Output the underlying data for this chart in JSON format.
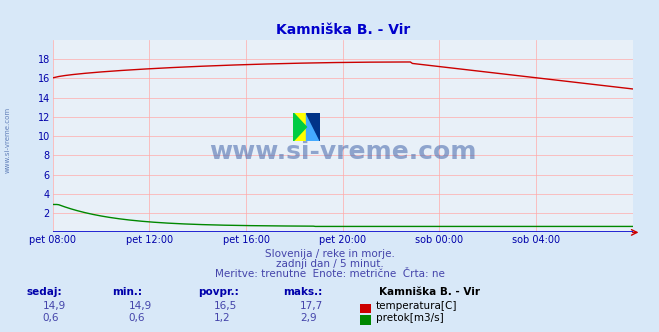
{
  "title": "Kamniška B. - Vir",
  "bg_color": "#d8e8f8",
  "plot_bg_color": "#e8f0f8",
  "grid_color": "#ffaaaa",
  "title_color": "#0000cc",
  "axis_color": "#0000aa",
  "text_color": "#4444aa",
  "x_labels": [
    "pet 08:00",
    "pet 12:00",
    "pet 16:00",
    "pet 20:00",
    "sob 00:00",
    "sob 04:00"
  ],
  "x_ticks_norm": [
    0.0,
    0.1667,
    0.3333,
    0.5,
    0.6667,
    0.8333
  ],
  "ylim": [
    0,
    20
  ],
  "temp_color": "#cc0000",
  "flow_color": "#008800",
  "watermark_text": "www.si-vreme.com",
  "watermark_color": "#4466aa",
  "subtitle1": "Slovenija / reke in morje.",
  "subtitle2": "zadnji dan / 5 minut.",
  "subtitle3": "Meritve: trenutne  Enote: metrične  Črta: ne",
  "legend_title": "Kamniška B. - Vir",
  "legend_items": [
    {
      "label": "temperatura[C]",
      "color": "#cc0000"
    },
    {
      "label": "pretok[m3/s]",
      "color": "#008800"
    }
  ],
  "stats_headers": [
    "sedaj:",
    "min.:",
    "povpr.:",
    "maks.:"
  ],
  "temp_stats": [
    "14,9",
    "14,9",
    "16,5",
    "17,7"
  ],
  "flow_stats": [
    "0,6",
    "0,6",
    "1,2",
    "2,9"
  ]
}
